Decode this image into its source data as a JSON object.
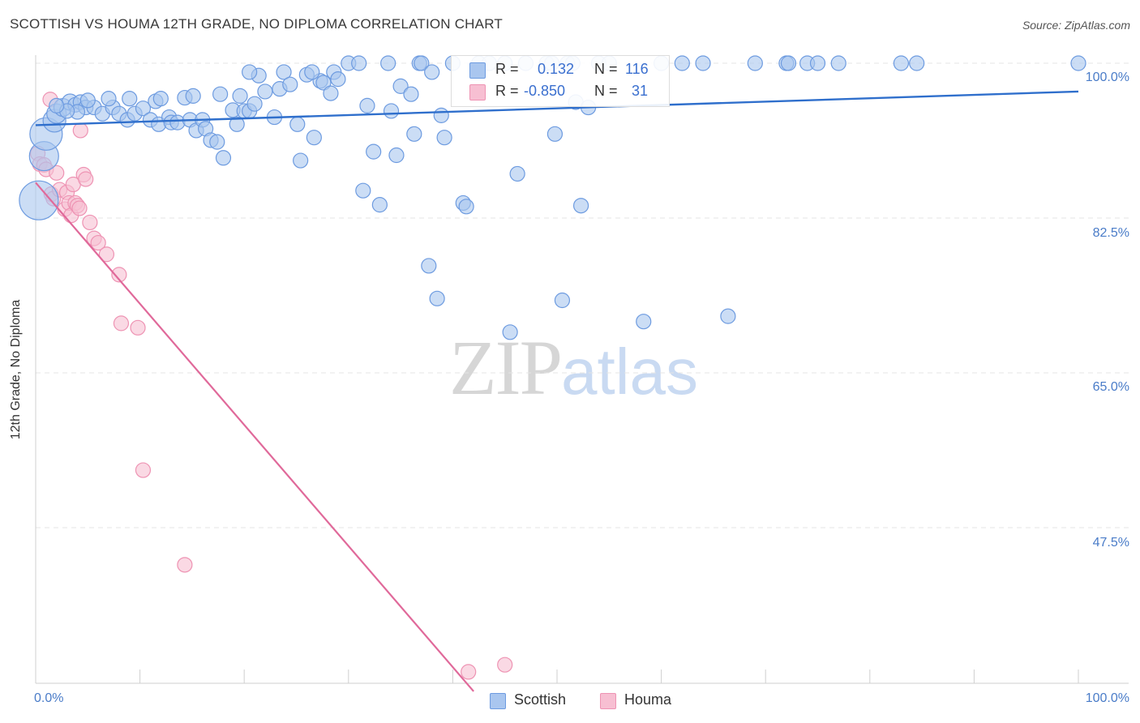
{
  "header": {
    "title": "SCOTTISH VS HOUMA 12TH GRADE, NO DIPLOMA CORRELATION CHART",
    "source": "Source: ZipAtlas.com"
  },
  "watermark": {
    "part1": "ZIP",
    "part2": "atlas"
  },
  "legend": {
    "row1": {
      "r_label": "R =",
      "r_value": "0.132",
      "n_label": "N =",
      "n_value": "116"
    },
    "row2": {
      "r_label": "R =",
      "r_value": "-0.850",
      "n_label": "N =",
      "n_value": "31"
    }
  },
  "bottom_legend": {
    "scottish": "Scottish",
    "houma": "Houma"
  },
  "colors": {
    "scottish_fill": "#a9c6ef",
    "scottish_stroke": "#6d9be0",
    "scottish_line": "#2f6fcc",
    "houma_fill": "#f7bfd2",
    "houma_stroke": "#ee93b3",
    "houma_line": "#e0699a",
    "tick_text": "#4a7cc8",
    "grid": "#e4e4e4"
  },
  "chart_data": {
    "type": "scatter",
    "title": "SCOTTISH VS HOUMA 12TH GRADE, NO DIPLOMA CORRELATION CHART",
    "xlabel": "",
    "ylabel": "12th Grade, No Diploma",
    "xlim": [
      0,
      100
    ],
    "ylim": [
      29.0,
      102.0
    ],
    "x_tick_labels": [
      "0.0%",
      "100.0%"
    ],
    "y_ticks": [
      100.0,
      82.5,
      65.0,
      47.5
    ],
    "y_tick_labels": [
      "100.0%",
      "82.5%",
      "65.0%",
      "47.5%"
    ],
    "series": [
      {
        "name": "Scottish",
        "R": 0.132,
        "N": 116,
        "trend": {
          "x": [
            0,
            100
          ],
          "y": [
            93.0,
            96.8
          ]
        },
        "points": [
          {
            "x": 0.3,
            "y": 84.5,
            "s": 24
          },
          {
            "x": 0.8,
            "y": 89.5,
            "s": 18
          },
          {
            "x": 1.0,
            "y": 92.0,
            "s": 20
          },
          {
            "x": 1.8,
            "y": 93.5,
            "s": 14
          },
          {
            "x": 2.0,
            "y": 94.3,
            "s": 12
          },
          {
            "x": 2.6,
            "y": 95.0,
            "s": 11
          },
          {
            "x": 3.3,
            "y": 95.6,
            "s": 10
          },
          {
            "x": 3.8,
            "y": 95.3,
            "s": 9
          },
          {
            "x": 4.3,
            "y": 95.6,
            "s": 9
          },
          {
            "x": 4.8,
            "y": 95.0,
            "s": 9
          },
          {
            "x": 5.6,
            "y": 95.0,
            "s": 9
          },
          {
            "x": 6.4,
            "y": 94.3,
            "s": 9
          },
          {
            "x": 7.4,
            "y": 95.0,
            "s": 9
          },
          {
            "x": 8.0,
            "y": 94.3,
            "s": 9
          },
          {
            "x": 8.8,
            "y": 93.6,
            "s": 9
          },
          {
            "x": 9.5,
            "y": 94.3,
            "s": 9
          },
          {
            "x": 10.3,
            "y": 94.9,
            "s": 9
          },
          {
            "x": 11.0,
            "y": 93.6,
            "s": 9
          },
          {
            "x": 11.5,
            "y": 95.7,
            "s": 9
          },
          {
            "x": 11.8,
            "y": 93.1,
            "s": 9
          },
          {
            "x": 12.8,
            "y": 93.9,
            "s": 9
          },
          {
            "x": 13.0,
            "y": 93.3,
            "s": 9
          },
          {
            "x": 13.6,
            "y": 93.3,
            "s": 9
          },
          {
            "x": 14.3,
            "y": 96.1,
            "s": 9
          },
          {
            "x": 14.8,
            "y": 93.6,
            "s": 9
          },
          {
            "x": 15.1,
            "y": 96.3,
            "s": 9
          },
          {
            "x": 15.4,
            "y": 92.4,
            "s": 9
          },
          {
            "x": 16.0,
            "y": 93.6,
            "s": 9
          },
          {
            "x": 16.3,
            "y": 92.6,
            "s": 9
          },
          {
            "x": 16.8,
            "y": 91.3,
            "s": 9
          },
          {
            "x": 17.4,
            "y": 91.1,
            "s": 9
          },
          {
            "x": 17.7,
            "y": 96.5,
            "s": 9
          },
          {
            "x": 18.0,
            "y": 89.3,
            "s": 9
          },
          {
            "x": 18.9,
            "y": 94.7,
            "s": 9
          },
          {
            "x": 19.3,
            "y": 93.1,
            "s": 9
          },
          {
            "x": 19.6,
            "y": 96.3,
            "s": 9
          },
          {
            "x": 20.0,
            "y": 94.6,
            "s": 9
          },
          {
            "x": 20.5,
            "y": 94.6,
            "s": 9
          },
          {
            "x": 21.0,
            "y": 95.4,
            "s": 9
          },
          {
            "x": 21.4,
            "y": 98.6,
            "s": 9
          },
          {
            "x": 22.0,
            "y": 96.8,
            "s": 9
          },
          {
            "x": 22.9,
            "y": 93.9,
            "s": 9
          },
          {
            "x": 23.4,
            "y": 97.1,
            "s": 9
          },
          {
            "x": 23.8,
            "y": 99.0,
            "s": 9
          },
          {
            "x": 24.4,
            "y": 97.6,
            "s": 9
          },
          {
            "x": 25.1,
            "y": 93.1,
            "s": 9
          },
          {
            "x": 25.4,
            "y": 89.0,
            "s": 9
          },
          {
            "x": 26.0,
            "y": 98.7,
            "s": 9
          },
          {
            "x": 26.7,
            "y": 91.6,
            "s": 9
          },
          {
            "x": 27.3,
            "y": 98.0,
            "s": 9
          },
          {
            "x": 27.6,
            "y": 97.8,
            "s": 9
          },
          {
            "x": 28.3,
            "y": 96.6,
            "s": 9
          },
          {
            "x": 28.6,
            "y": 99.0,
            "s": 9
          },
          {
            "x": 29.0,
            "y": 98.2,
            "s": 9
          },
          {
            "x": 30.0,
            "y": 100.0,
            "s": 9
          },
          {
            "x": 31.0,
            "y": 100.0,
            "s": 9
          },
          {
            "x": 31.4,
            "y": 85.6,
            "s": 9
          },
          {
            "x": 31.8,
            "y": 95.2,
            "s": 9
          },
          {
            "x": 32.4,
            "y": 90.0,
            "s": 9
          },
          {
            "x": 33.0,
            "y": 84.0,
            "s": 9
          },
          {
            "x": 33.8,
            "y": 100.0,
            "s": 9
          },
          {
            "x": 34.1,
            "y": 94.6,
            "s": 9
          },
          {
            "x": 34.6,
            "y": 89.6,
            "s": 9
          },
          {
            "x": 35.0,
            "y": 97.4,
            "s": 9
          },
          {
            "x": 36.0,
            "y": 96.5,
            "s": 9
          },
          {
            "x": 36.3,
            "y": 92.0,
            "s": 9
          },
          {
            "x": 36.8,
            "y": 100.0,
            "s": 9
          },
          {
            "x": 37.0,
            "y": 100.0,
            "s": 9
          },
          {
            "x": 37.7,
            "y": 77.1,
            "s": 9
          },
          {
            "x": 38.5,
            "y": 73.4,
            "s": 9
          },
          {
            "x": 38.9,
            "y": 94.1,
            "s": 9
          },
          {
            "x": 39.2,
            "y": 91.6,
            "s": 9
          },
          {
            "x": 40.0,
            "y": 100.0,
            "s": 9
          },
          {
            "x": 41.0,
            "y": 84.2,
            "s": 9
          },
          {
            "x": 41.3,
            "y": 83.8,
            "s": 9
          },
          {
            "x": 42.5,
            "y": 100.0,
            "s": 9
          },
          {
            "x": 43.5,
            "y": 100.0,
            "s": 9
          },
          {
            "x": 45.0,
            "y": 100.0,
            "s": 9
          },
          {
            "x": 45.5,
            "y": 69.6,
            "s": 9
          },
          {
            "x": 46.2,
            "y": 87.5,
            "s": 9
          },
          {
            "x": 47.0,
            "y": 100.0,
            "s": 9
          },
          {
            "x": 49.0,
            "y": 100.0,
            "s": 9
          },
          {
            "x": 49.5,
            "y": 100.0,
            "s": 9
          },
          {
            "x": 49.8,
            "y": 92.0,
            "s": 9
          },
          {
            "x": 50.5,
            "y": 73.2,
            "s": 9
          },
          {
            "x": 51.0,
            "y": 100.0,
            "s": 9
          },
          {
            "x": 51.5,
            "y": 100.0,
            "s": 9
          },
          {
            "x": 51.8,
            "y": 95.6,
            "s": 9
          },
          {
            "x": 54.0,
            "y": 100.0,
            "s": 9
          },
          {
            "x": 55.0,
            "y": 100.0,
            "s": 9
          },
          {
            "x": 58.3,
            "y": 70.8,
            "s": 9
          },
          {
            "x": 60.0,
            "y": 100.0,
            "s": 9
          },
          {
            "x": 62.0,
            "y": 100.0,
            "s": 9
          },
          {
            "x": 64.0,
            "y": 100.0,
            "s": 9
          },
          {
            "x": 66.4,
            "y": 71.4,
            "s": 9
          },
          {
            "x": 69.0,
            "y": 100.0,
            "s": 9
          },
          {
            "x": 72.0,
            "y": 100.0,
            "s": 9
          },
          {
            "x": 72.2,
            "y": 100.0,
            "s": 9
          },
          {
            "x": 74.0,
            "y": 100.0,
            "s": 9
          },
          {
            "x": 75.0,
            "y": 100.0,
            "s": 9
          },
          {
            "x": 77.0,
            "y": 100.0,
            "s": 9
          },
          {
            "x": 83.0,
            "y": 100.0,
            "s": 9
          },
          {
            "x": 84.5,
            "y": 100.0,
            "s": 9
          },
          {
            "x": 100.0,
            "y": 100.0,
            "s": 9
          },
          {
            "x": 52.3,
            "y": 83.9,
            "s": 9
          },
          {
            "x": 53.0,
            "y": 95.0,
            "s": 9
          },
          {
            "x": 38.0,
            "y": 99.0,
            "s": 9
          },
          {
            "x": 26.5,
            "y": 99.0,
            "s": 9
          },
          {
            "x": 20.5,
            "y": 99.0,
            "s": 9
          },
          {
            "x": 12.0,
            "y": 96.0,
            "s": 9
          },
          {
            "x": 9.0,
            "y": 96.0,
            "s": 9
          },
          {
            "x": 7.0,
            "y": 96.0,
            "s": 9
          },
          {
            "x": 5.0,
            "y": 95.8,
            "s": 9
          },
          {
            "x": 4.0,
            "y": 94.5,
            "s": 9
          },
          {
            "x": 3.0,
            "y": 94.6,
            "s": 9
          },
          {
            "x": 2.0,
            "y": 95.2,
            "s": 9
          }
        ]
      },
      {
        "name": "Houma",
        "R": -0.85,
        "N": 31,
        "trend": {
          "x": [
            0,
            42
          ],
          "y": [
            86.5,
            29.0
          ]
        },
        "points": [
          {
            "x": 0.2,
            "y": 89.8,
            "s": 9
          },
          {
            "x": 0.4,
            "y": 88.6,
            "s": 9
          },
          {
            "x": 0.8,
            "y": 88.5,
            "s": 9
          },
          {
            "x": 1.0,
            "y": 88.0,
            "s": 9
          },
          {
            "x": 1.4,
            "y": 95.9,
            "s": 9
          },
          {
            "x": 1.5,
            "y": 85.2,
            "s": 9
          },
          {
            "x": 1.7,
            "y": 84.7,
            "s": 9
          },
          {
            "x": 2.0,
            "y": 87.6,
            "s": 9
          },
          {
            "x": 2.3,
            "y": 85.7,
            "s": 9
          },
          {
            "x": 2.8,
            "y": 83.5,
            "s": 9
          },
          {
            "x": 3.0,
            "y": 85.4,
            "s": 9
          },
          {
            "x": 3.2,
            "y": 84.2,
            "s": 9
          },
          {
            "x": 3.4,
            "y": 82.8,
            "s": 9
          },
          {
            "x": 3.6,
            "y": 86.3,
            "s": 9
          },
          {
            "x": 3.8,
            "y": 84.2,
            "s": 9
          },
          {
            "x": 4.0,
            "y": 83.9,
            "s": 9
          },
          {
            "x": 4.2,
            "y": 83.6,
            "s": 9
          },
          {
            "x": 4.3,
            "y": 92.4,
            "s": 9
          },
          {
            "x": 4.6,
            "y": 87.4,
            "s": 9
          },
          {
            "x": 4.8,
            "y": 86.9,
            "s": 9
          },
          {
            "x": 5.2,
            "y": 82.0,
            "s": 9
          },
          {
            "x": 5.6,
            "y": 80.2,
            "s": 9
          },
          {
            "x": 6.0,
            "y": 79.7,
            "s": 9
          },
          {
            "x": 6.8,
            "y": 78.4,
            "s": 9
          },
          {
            "x": 8.0,
            "y": 76.1,
            "s": 9
          },
          {
            "x": 8.2,
            "y": 70.6,
            "s": 9
          },
          {
            "x": 9.8,
            "y": 70.1,
            "s": 9
          },
          {
            "x": 10.3,
            "y": 54.0,
            "s": 9
          },
          {
            "x": 14.3,
            "y": 43.3,
            "s": 9
          },
          {
            "x": 41.5,
            "y": 31.2,
            "s": 9
          },
          {
            "x": 45.0,
            "y": 32.0,
            "s": 9
          }
        ]
      }
    ]
  }
}
